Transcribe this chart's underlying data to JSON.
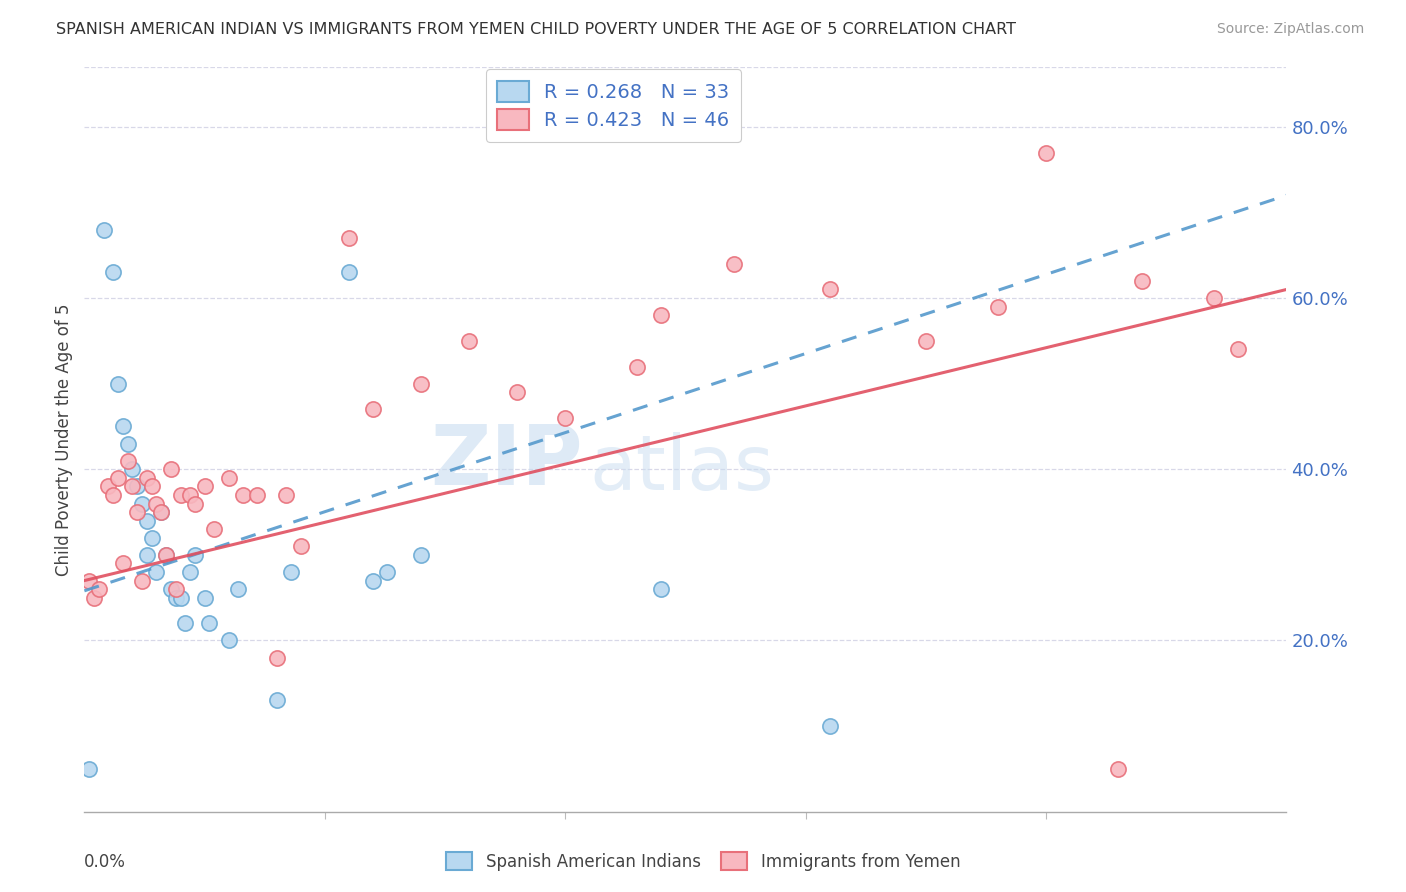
{
  "title": "SPANISH AMERICAN INDIAN VS IMMIGRANTS FROM YEMEN CHILD POVERTY UNDER THE AGE OF 5 CORRELATION CHART",
  "source": "Source: ZipAtlas.com",
  "ylabel": "Child Poverty Under the Age of 5",
  "ytick_labels": [
    "20.0%",
    "40.0%",
    "60.0%",
    "80.0%"
  ],
  "ytick_values": [
    0.2,
    0.4,
    0.6,
    0.8
  ],
  "xlim": [
    0.0,
    0.25
  ],
  "ylim": [
    0.0,
    0.87
  ],
  "watermark_zip": "ZIP",
  "watermark_atlas": "atlas",
  "series1_name": "Spanish American Indians",
  "series2_name": "Immigrants from Yemen",
  "series1_marker_face": "#b8d8f0",
  "series1_marker_edge": "#6aaad4",
  "series2_marker_face": "#f8b8c0",
  "series2_marker_edge": "#e8707a",
  "trendline1_color": "#5599cc",
  "trendline2_color": "#e05060",
  "R1": 0.268,
  "N1": 33,
  "R2": 0.423,
  "N2": 46,
  "legend_R_color": "#4472c4",
  "legend_N_color": "#4472c4",
  "blue_axis_color": "#4472c4",
  "trendline1_x0": 0.0,
  "trendline1_y0": 0.258,
  "trendline1_x1": 0.25,
  "trendline1_y1": 0.72,
  "trendline2_x0": 0.0,
  "trendline2_y0": 0.27,
  "trendline2_x1": 0.25,
  "trendline2_y1": 0.61,
  "scatter1_x": [
    0.001,
    0.004,
    0.006,
    0.007,
    0.008,
    0.009,
    0.01,
    0.011,
    0.012,
    0.013,
    0.013,
    0.014,
    0.015,
    0.016,
    0.017,
    0.018,
    0.019,
    0.02,
    0.021,
    0.022,
    0.023,
    0.025,
    0.026,
    0.03,
    0.032,
    0.04,
    0.043,
    0.055,
    0.06,
    0.063,
    0.07,
    0.12,
    0.155
  ],
  "scatter1_y": [
    0.05,
    0.68,
    0.63,
    0.5,
    0.45,
    0.43,
    0.4,
    0.38,
    0.36,
    0.34,
    0.3,
    0.32,
    0.28,
    0.35,
    0.3,
    0.26,
    0.25,
    0.25,
    0.22,
    0.28,
    0.3,
    0.25,
    0.22,
    0.2,
    0.26,
    0.13,
    0.28,
    0.63,
    0.27,
    0.28,
    0.3,
    0.26,
    0.1
  ],
  "scatter2_x": [
    0.001,
    0.002,
    0.003,
    0.005,
    0.006,
    0.007,
    0.008,
    0.009,
    0.01,
    0.011,
    0.012,
    0.013,
    0.014,
    0.015,
    0.016,
    0.017,
    0.018,
    0.019,
    0.02,
    0.022,
    0.023,
    0.025,
    0.027,
    0.03,
    0.033,
    0.036,
    0.04,
    0.042,
    0.045,
    0.055,
    0.06,
    0.07,
    0.08,
    0.09,
    0.1,
    0.12,
    0.135,
    0.155,
    0.175,
    0.19,
    0.2,
    0.215,
    0.22,
    0.235,
    0.24,
    0.115
  ],
  "scatter2_y": [
    0.27,
    0.25,
    0.26,
    0.38,
    0.37,
    0.39,
    0.29,
    0.41,
    0.38,
    0.35,
    0.27,
    0.39,
    0.38,
    0.36,
    0.35,
    0.3,
    0.4,
    0.26,
    0.37,
    0.37,
    0.36,
    0.38,
    0.33,
    0.39,
    0.37,
    0.37,
    0.18,
    0.37,
    0.31,
    0.67,
    0.47,
    0.5,
    0.55,
    0.49,
    0.46,
    0.58,
    0.64,
    0.61,
    0.55,
    0.59,
    0.77,
    0.05,
    0.62,
    0.6,
    0.54,
    0.52
  ],
  "grid_color": "#d8d8e8",
  "background_color": "#ffffff",
  "marker_size": 120,
  "trendline_lw": 2.2
}
